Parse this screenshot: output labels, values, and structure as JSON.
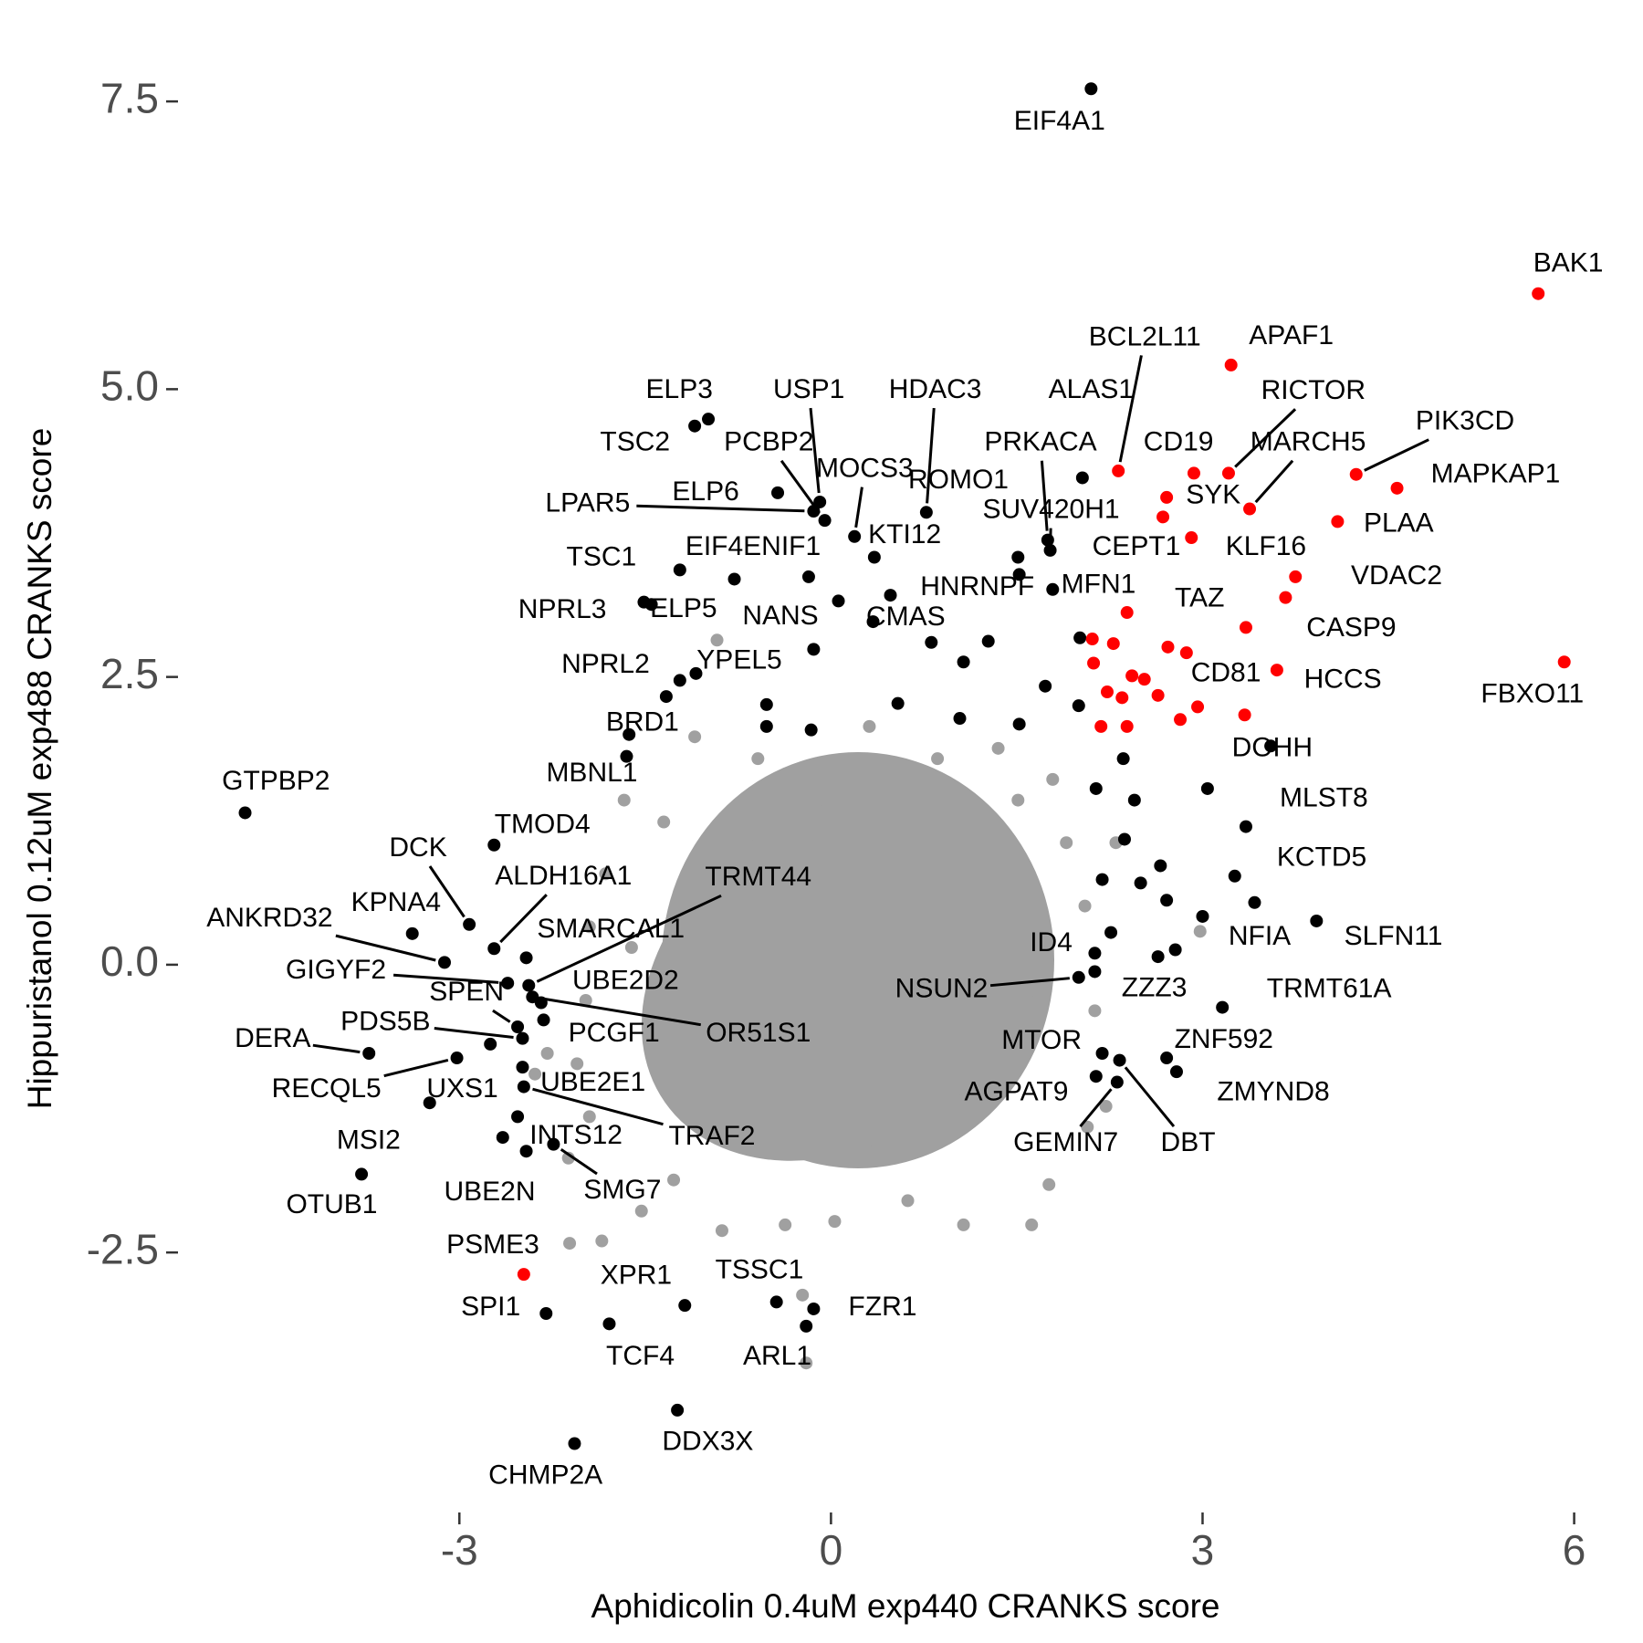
{
  "chart_data": {
    "type": "scatter",
    "x_label": "Aphidicolin 0.4uM exp440 CRANKS score",
    "y_label": "Hippuristanol 0.12uM exp488 CRANKS score",
    "xlim": [
      -5.26,
      6.39
    ],
    "ylim": [
      -4.7,
      7.83
    ],
    "xticks": [
      -3,
      0,
      3,
      6
    ],
    "yticks": [
      -2.5,
      {
        "value": 0,
        "label": "0.0"
      },
      2.5,
      {
        "value": 5,
        "label": "5.0"
      },
      7.5
    ],
    "grid": false,
    "series": [
      {
        "color": "#a0a0a0",
        "x": [
          -0.92,
          0.31,
          1.35,
          -1.67,
          -1.35,
          -1.82,
          -1.95,
          -1.98,
          -2.05,
          -1.95,
          -2.12,
          -2.11,
          -1.85,
          -1.53,
          -0.88,
          -0.37,
          0.03,
          0.62,
          1.07,
          1.62,
          1.76,
          2.07,
          2.22,
          2.13,
          2.05,
          1.9,
          1.79,
          1.51,
          2.98,
          -0.2,
          -0.23,
          -1.27,
          -1.1,
          -0.59,
          0.86,
          -2.39,
          -2.29,
          -1.61,
          -1.44,
          2.3
        ],
        "y": [
          2.82,
          2.07,
          1.88,
          1.43,
          1.24,
          0.79,
          0.33,
          -0.31,
          -0.86,
          -1.32,
          -1.68,
          -2.42,
          -2.4,
          -2.14,
          -2.31,
          -2.26,
          -2.23,
          -2.05,
          -2.26,
          -2.26,
          -1.91,
          -1.41,
          -1.23,
          -0.4,
          0.51,
          1.06,
          1.61,
          1.43,
          0.29,
          -3.46,
          -2.87,
          -1.87,
          1.98,
          1.79,
          1.79,
          -0.95,
          -0.77,
          0.15,
          -0.77,
          1.06
        ]
      },
      {
        "color": "#000000",
        "x": [
          -0.78,
          0.06,
          0.48,
          0.81,
          1.27,
          2.01,
          1.07,
          1.73,
          2.0,
          0.54,
          -0.52,
          -0.52,
          -0.16,
          1.04,
          1.52,
          2.36,
          2.45,
          2.37,
          2.19,
          2.5,
          2.66,
          2.71,
          3.0,
          2.78,
          2.64,
          2.26,
          -1.33,
          2.14,
          3.04,
          -2.75
        ],
        "y": [
          3.35,
          3.16,
          3.21,
          2.8,
          2.81,
          2.84,
          2.63,
          2.42,
          2.25,
          2.27,
          2.26,
          2.07,
          2.04,
          2.14,
          2.09,
          1.79,
          1.43,
          1.09,
          0.74,
          0.71,
          0.86,
          0.56,
          0.42,
          0.13,
          0.07,
          0.28,
          2.33,
          1.53,
          1.53,
          -0.69
        ]
      },
      {
        "color": "#ff0000",
        "x": [
          2.39,
          2.11,
          2.28,
          2.72,
          2.87,
          2.12,
          2.43,
          2.23,
          2.35,
          2.53,
          2.64,
          2.82,
          3.34,
          2.18,
          2.39
        ],
        "y": [
          3.06,
          2.83,
          2.79,
          2.76,
          2.71,
          2.62,
          2.51,
          2.37,
          2.32,
          2.48,
          2.34,
          2.13,
          2.17,
          2.07,
          2.07
        ]
      },
      {
        "color": "#000000",
        "labels": [
          "EIF4A1",
          "ELP3",
          "TSC2",
          "USP1",
          "PCBP2",
          "HDAC3",
          "ALAS1",
          "DOHH",
          "MLST8",
          "KCTD5",
          "NFIA",
          "SLFN11",
          "TRMT61A",
          "ZZZ3",
          "ID4",
          "NSUN2",
          "MTOR",
          "ZNF592",
          "ZMYND8",
          "AGPAT9",
          "GEMIN7",
          "DBT",
          "PRKACA",
          "SUV420H1",
          "ROMO1",
          "MOCS3",
          "KTI12",
          "LPAR5",
          "ELP6",
          "EIF4ENIF1",
          "TSC1",
          "NPRL3",
          "ELP5",
          "NANS",
          "CMAS",
          "HNRNPF",
          "MFN1",
          "YPEL5",
          "NPRL2",
          "BRD1",
          "MBNL1",
          "TMOD4",
          "GTPBP2",
          "DCK",
          "ALDH16A1",
          "TRMT44",
          "KPNA4",
          "ANKRD32",
          "SMARCAL1",
          "GIGYF2",
          "UBE2D2",
          "SPEN",
          "PDS5B",
          "PCGF1",
          "OR51S1",
          "DERA",
          "RECQL5",
          "UXS1",
          "UBE2E1",
          "TRAF2",
          "INTS12",
          "MSI2",
          "OTUB1",
          "UBE2N",
          "SMG7",
          "SPI1",
          "XPR1",
          "TSSC1",
          "FZR1",
          "TCF4",
          "ARL1",
          "DDX3X",
          "CHMP2A"
        ],
        "x": [
          2.1,
          -0.99,
          -1.1,
          -0.09,
          -0.05,
          0.77,
          2.03,
          3.55,
          3.35,
          3.26,
          3.42,
          3.92,
          3.16,
          2.13,
          2.13,
          2.0,
          2.19,
          2.71,
          2.79,
          2.14,
          2.31,
          2.33,
          1.75,
          1.77,
          1.51,
          0.19,
          0.35,
          -0.14,
          -0.43,
          -0.18,
          -1.22,
          -1.51,
          -1.45,
          -0.14,
          0.34,
          1.52,
          1.79,
          -1.09,
          -1.22,
          -1.63,
          -1.65,
          -2.72,
          -4.73,
          -2.92,
          -2.72,
          -2.44,
          -3.38,
          -3.12,
          -2.46,
          -2.61,
          -2.34,
          -2.53,
          -2.49,
          -2.32,
          -2.41,
          -3.73,
          -3.02,
          -3.24,
          -2.49,
          -2.48,
          -2.53,
          -2.65,
          -3.79,
          -2.46,
          -2.24,
          -2.3,
          -1.18,
          -0.44,
          -0.14,
          -1.79,
          -0.2,
          -1.24,
          -2.07
        ],
        "y": [
          7.61,
          4.74,
          4.68,
          4.02,
          3.86,
          3.93,
          4.23,
          1.9,
          1.2,
          0.77,
          0.54,
          0.38,
          -0.37,
          -0.06,
          0.1,
          -0.11,
          -0.77,
          -0.81,
          -0.93,
          -0.97,
          -1.02,
          -0.83,
          3.69,
          3.6,
          3.54,
          3.72,
          3.54,
          3.94,
          4.1,
          3.37,
          3.43,
          3.15,
          3.13,
          2.74,
          2.98,
          3.39,
          3.26,
          2.53,
          2.47,
          2.0,
          1.81,
          1.04,
          1.32,
          0.35,
          0.14,
          -0.18,
          0.27,
          0.02,
          0.06,
          -0.16,
          -0.33,
          -0.54,
          -0.64,
          -0.48,
          -0.28,
          -0.77,
          -0.81,
          -1.2,
          -0.89,
          -1.06,
          -1.32,
          -1.5,
          -1.82,
          -1.62,
          -1.56,
          -3.03,
          -2.96,
          -2.93,
          -2.99,
          -3.12,
          -3.14,
          -3.87,
          -4.16
        ]
      },
      {
        "color": "#ff0000",
        "labels": [
          "BCL2L11",
          "APAF1",
          "RICTOR",
          "CD19",
          "MARCH5",
          "PIK3CD",
          "MAPKAP1",
          "PLAA",
          "SYK",
          "KLF16",
          "CEPT1",
          "VDAC2",
          "CASP9",
          "TAZ",
          "HCCS",
          "CD81",
          "FBXO11",
          "BAK1",
          "PSME3"
        ],
        "x": [
          2.32,
          3.23,
          3.21,
          2.93,
          3.38,
          4.24,
          4.57,
          4.09,
          2.71,
          2.91,
          2.68,
          3.75,
          3.67,
          3.35,
          3.6,
          2.96,
          5.92,
          5.71,
          -2.48
        ],
        "y": [
          4.29,
          5.21,
          4.27,
          4.27,
          3.96,
          4.26,
          4.14,
          3.85,
          4.06,
          3.71,
          3.89,
          3.37,
          3.19,
          2.93,
          2.56,
          2.24,
          2.63,
          5.83,
          -2.69
        ]
      }
    ]
  }
}
